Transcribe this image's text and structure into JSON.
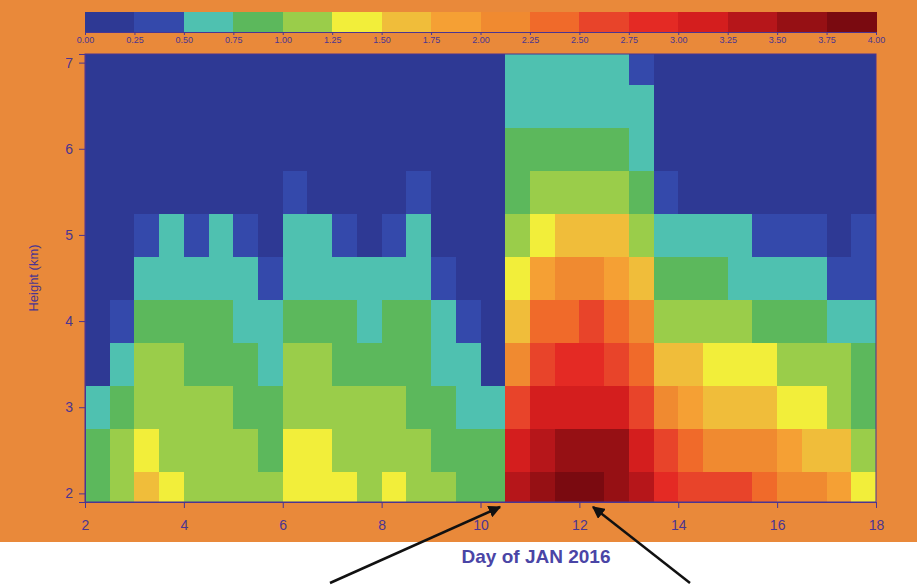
{
  "chart_data": {
    "type": "heatmap",
    "x_label": "Day of JAN 2016",
    "y_label": "Height (km)",
    "x": [
      2,
      2.5,
      3,
      3.5,
      4,
      4.5,
      5,
      5.5,
      6,
      6.5,
      7,
      7.5,
      8,
      8.5,
      9,
      9.5,
      10,
      10.5,
      11,
      11.5,
      12,
      12.5,
      13,
      13.5,
      14,
      14.5,
      15,
      15.5,
      16,
      16.5,
      17,
      17.5,
      18
    ],
    "y": [
      1.9,
      2.25,
      2.75,
      3.25,
      3.75,
      4.25,
      4.75,
      5.25,
      5.75,
      6.25,
      6.75,
      7.1
    ],
    "values": [
      [
        0.9,
        1.2,
        1.6,
        1.3,
        1.1,
        1.1,
        1.2,
        1.1,
        1.4,
        1.4,
        1.3,
        1.2,
        1.3,
        1.1,
        1.0,
        0.9,
        0.9,
        3.3,
        3.6,
        3.8,
        3.9,
        3.7,
        3.4,
        2.9,
        2.7,
        2.6,
        2.5,
        2.4,
        2.2,
        2.0,
        1.8,
        1.4
      ],
      [
        0.8,
        1.1,
        1.4,
        1.2,
        1.0,
        1.0,
        1.0,
        0.9,
        1.3,
        1.3,
        1.2,
        1.1,
        1.2,
        1.0,
        0.9,
        0.8,
        0.8,
        3.0,
        3.4,
        3.6,
        3.7,
        3.5,
        3.1,
        2.6,
        2.3,
        2.2,
        2.1,
        2.0,
        1.8,
        1.6,
        1.5,
        1.2
      ],
      [
        0.5,
        0.9,
        1.1,
        1.1,
        1.0,
        1.0,
        0.9,
        0.8,
        1.1,
        1.1,
        1.0,
        1.0,
        1.0,
        0.9,
        0.8,
        0.7,
        0.5,
        2.6,
        3.0,
        3.1,
        3.2,
        3.0,
        2.7,
        2.0,
        1.8,
        1.7,
        1.6,
        1.5,
        1.4,
        1.3,
        1.2,
        0.9
      ],
      [
        0.2,
        0.6,
        1.0,
        1.0,
        0.9,
        0.9,
        0.8,
        0.7,
        1.0,
        1.0,
        0.9,
        0.9,
        0.9,
        0.8,
        0.7,
        0.6,
        0.2,
        2.1,
        2.7,
        2.8,
        2.9,
        2.7,
        2.4,
        1.6,
        1.5,
        1.4,
        1.3,
        1.3,
        1.2,
        1.1,
        1.0,
        0.8
      ],
      [
        0.1,
        0.3,
        0.8,
        0.9,
        0.8,
        0.8,
        0.7,
        0.6,
        0.8,
        0.8,
        0.8,
        0.7,
        0.8,
        0.8,
        0.6,
        0.3,
        0.1,
        1.6,
        2.3,
        2.4,
        2.5,
        2.3,
        2.0,
        1.2,
        1.1,
        1.0,
        1.0,
        0.9,
        0.9,
        0.8,
        0.7,
        0.6
      ],
      [
        0.1,
        0.2,
        0.6,
        0.7,
        0.6,
        0.7,
        0.6,
        0.3,
        0.7,
        0.7,
        0.6,
        0.5,
        0.6,
        0.7,
        0.4,
        0.1,
        0.1,
        1.3,
        1.8,
        2.0,
        2.1,
        1.9,
        1.6,
        0.9,
        0.8,
        0.8,
        0.7,
        0.7,
        0.6,
        0.6,
        0.4,
        0.4
      ],
      [
        0.1,
        0.1,
        0.4,
        0.5,
        0.4,
        0.5,
        0.4,
        0.1,
        0.6,
        0.5,
        0.4,
        0.2,
        0.4,
        0.5,
        0.2,
        0.1,
        0.1,
        1.1,
        1.4,
        1.5,
        1.6,
        1.5,
        1.2,
        0.6,
        0.5,
        0.5,
        0.5,
        0.4,
        0.4,
        0.3,
        0.2,
        0.3
      ],
      [
        0.1,
        0.1,
        0.1,
        0.2,
        0.1,
        0.1,
        0.1,
        0.1,
        0.3,
        0.2,
        0.1,
        0.1,
        0.1,
        0.3,
        0.1,
        0.1,
        0.1,
        0.9,
        1.1,
        1.2,
        1.2,
        1.1,
        0.9,
        0.3,
        0.2,
        0.2,
        0.2,
        0.1,
        0.1,
        0.1,
        0.1,
        0.1
      ],
      [
        0.1,
        0.1,
        0.1,
        0.1,
        0.1,
        0.1,
        0.1,
        0.1,
        0.1,
        0.1,
        0.1,
        0.1,
        0.1,
        0.1,
        0.1,
        0.1,
        0.1,
        0.8,
        0.8,
        0.9,
        0.9,
        0.8,
        0.7,
        0.1,
        0.1,
        0.1,
        0.1,
        0.1,
        0.1,
        0.1,
        0.1,
        0.1
      ],
      [
        0.1,
        0.1,
        0.1,
        0.1,
        0.1,
        0.1,
        0.1,
        0.1,
        0.1,
        0.1,
        0.1,
        0.1,
        0.1,
        0.1,
        0.1,
        0.1,
        0.1,
        0.7,
        0.6,
        0.7,
        0.7,
        0.6,
        0.5,
        0.1,
        0.1,
        0.1,
        0.1,
        0.1,
        0.1,
        0.1,
        0.1,
        0.1
      ],
      [
        0.1,
        0.1,
        0.1,
        0.1,
        0.1,
        0.1,
        0.1,
        0.1,
        0.1,
        0.1,
        0.1,
        0.1,
        0.1,
        0.1,
        0.1,
        0.1,
        0.1,
        0.6,
        0.5,
        0.5,
        0.6,
        0.5,
        0.4,
        0.1,
        0.1,
        0.1,
        0.1,
        0.1,
        0.1,
        0.1,
        0.1,
        0.1
      ]
    ],
    "xlim": [
      2,
      18
    ],
    "ylim": [
      1.9,
      7.1
    ],
    "xticks": [
      2,
      4,
      6,
      8,
      10,
      12,
      14,
      16,
      18
    ],
    "yticks": [
      2,
      3,
      4,
      5,
      6,
      7
    ],
    "zlim": [
      0,
      4
    ],
    "zticks": [
      {
        "value": 0,
        "label": "0.00"
      },
      {
        "value": 0.25,
        "label": "0.25"
      },
      {
        "value": 0.5,
        "label": "0.50"
      },
      {
        "value": 0.75,
        "label": "0.75"
      },
      {
        "value": 1,
        "label": "1.00"
      },
      {
        "value": 1.25,
        "label": "1.25"
      },
      {
        "value": 1.5,
        "label": "1.50"
      },
      {
        "value": 1.75,
        "label": "1.75"
      },
      {
        "value": 2,
        "label": "2.00"
      },
      {
        "value": 2.25,
        "label": "2.25"
      },
      {
        "value": 2.5,
        "label": "2.50"
      },
      {
        "value": 2.75,
        "label": "2.75"
      },
      {
        "value": 3,
        "label": "3.00"
      },
      {
        "value": 3.25,
        "label": "3.25"
      },
      {
        "value": 3.5,
        "label": "3.50"
      },
      {
        "value": 3.75,
        "label": "3.75"
      },
      {
        "value": 4,
        "label": "4.00"
      }
    ],
    "colors": [
      "#2e3994",
      "#3449ab",
      "#4fc1b0",
      "#5cb85c",
      "#9acd4a",
      "#f2ee3a",
      "#f0bd3a",
      "#f5a034",
      "#f08a30",
      "#f06a2a",
      "#e8442a",
      "#e42a24",
      "#d41e1e",
      "#b6161a",
      "#961014",
      "#7a0a10"
    ]
  }
}
